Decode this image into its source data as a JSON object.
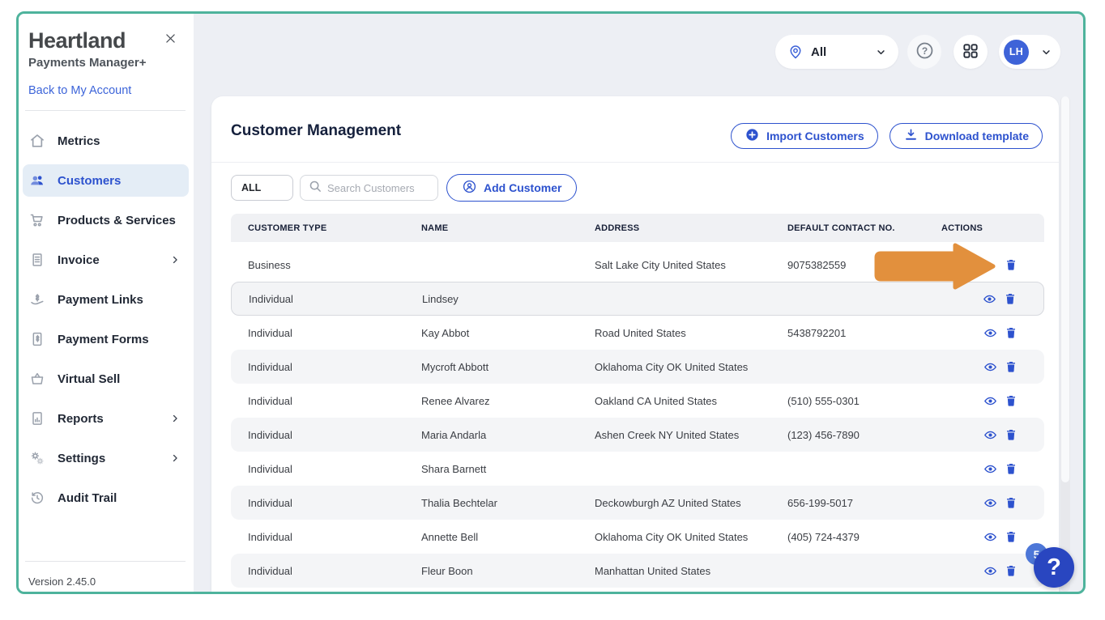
{
  "app": {
    "brand": "Heartland",
    "product": "Payments Manager+",
    "back_link": "Back to My Account",
    "version": "Version 2.45.0",
    "close_icon": "close-icon"
  },
  "topbar": {
    "location_filter": {
      "label": "All",
      "icon": "location-pin-icon",
      "chevron_icon": "chevron-down-icon"
    },
    "help_icon": "help-circle-icon",
    "apps_icon": "grid-apps-icon",
    "user": {
      "initials": "LH",
      "chevron_icon": "chevron-down-icon"
    }
  },
  "sidebar": {
    "items": [
      {
        "label": "Metrics",
        "icon": "home-icon",
        "selected": false,
        "expandable": false
      },
      {
        "label": "Customers",
        "icon": "customers-icon",
        "selected": true,
        "expandable": false
      },
      {
        "label": "Products & Services",
        "icon": "products-icon",
        "selected": false,
        "expandable": false
      },
      {
        "label": "Invoice",
        "icon": "invoice-icon",
        "selected": false,
        "expandable": true
      },
      {
        "label": "Payment Links",
        "icon": "payment-links-icon",
        "selected": false,
        "expandable": false
      },
      {
        "label": "Payment Forms",
        "icon": "payment-forms-icon",
        "selected": false,
        "expandable": false
      },
      {
        "label": "Virtual Sell",
        "icon": "virtual-sell-icon",
        "selected": false,
        "expandable": false
      },
      {
        "label": "Reports",
        "icon": "reports-icon",
        "selected": false,
        "expandable": true
      },
      {
        "label": "Settings",
        "icon": "settings-icon",
        "selected": false,
        "expandable": true
      },
      {
        "label": "Audit Trail",
        "icon": "audit-trail-icon",
        "selected": false,
        "expandable": false
      }
    ]
  },
  "main": {
    "title": "Customer Management",
    "header_buttons": {
      "import": {
        "label": "Import Customers",
        "icon": "plus-circle-icon"
      },
      "download": {
        "label": "Download template",
        "icon": "download-icon"
      }
    },
    "filters": {
      "type_filter": "ALL",
      "search_placeholder": "Search Customers",
      "search_icon": "search-icon",
      "add_customer": {
        "label": "Add Customer",
        "icon": "person-circle-icon"
      }
    },
    "table": {
      "columns": [
        "CUSTOMER TYPE",
        "NAME",
        "ADDRESS",
        "DEFAULT CONTACT NO.",
        "ACTIONS"
      ],
      "action_icons": {
        "view": "eye-icon",
        "delete": "trash-icon"
      },
      "rows": [
        {
          "type": "Business",
          "name": "",
          "address": "Salt Lake City United States",
          "contact": "9075382559",
          "actions": [
            "delete"
          ],
          "arrow_annotation": true,
          "highlighted": false
        },
        {
          "type": "Individual",
          "name": "Lindsey",
          "address": "",
          "contact": "",
          "actions": [
            "view",
            "delete"
          ],
          "arrow_annotation": false,
          "highlighted": true
        },
        {
          "type": "Individual",
          "name": "Kay Abbot",
          "address": "Road United States",
          "contact": "5438792201",
          "actions": [
            "view",
            "delete"
          ],
          "arrow_annotation": false,
          "highlighted": false
        },
        {
          "type": "Individual",
          "name": "Mycroft Abbott",
          "address": "Oklahoma City OK United States",
          "contact": "",
          "actions": [
            "view",
            "delete"
          ],
          "arrow_annotation": false,
          "highlighted": false
        },
        {
          "type": "Individual",
          "name": "Renee Alvarez",
          "address": "Oakland CA United States",
          "contact": "(510) 555-0301",
          "actions": [
            "view",
            "delete"
          ],
          "arrow_annotation": false,
          "highlighted": false
        },
        {
          "type": "Individual",
          "name": "Maria Andarla",
          "address": "Ashen Creek NY United States",
          "contact": "(123) 456-7890",
          "actions": [
            "view",
            "delete"
          ],
          "arrow_annotation": false,
          "highlighted": false
        },
        {
          "type": "Individual",
          "name": "Shara Barnett",
          "address": "",
          "contact": "",
          "actions": [
            "view",
            "delete"
          ],
          "arrow_annotation": false,
          "highlighted": false
        },
        {
          "type": "Individual",
          "name": "Thalia Bechtelar",
          "address": "Deckowburgh AZ United States",
          "contact": "656-199-5017",
          "actions": [
            "view",
            "delete"
          ],
          "arrow_annotation": false,
          "highlighted": false
        },
        {
          "type": "Individual",
          "name": "Annette Bell",
          "address": "Oklahoma City OK United States",
          "contact": "(405) 724-4379",
          "actions": [
            "view",
            "delete"
          ],
          "arrow_annotation": false,
          "highlighted": false
        },
        {
          "type": "Individual",
          "name": "Fleur Boon",
          "address": "Manhattan United States",
          "contact": "",
          "actions": [
            "view",
            "delete"
          ],
          "arrow_annotation": false,
          "highlighted": false
        }
      ]
    }
  },
  "help_widget": {
    "badge_count": "5",
    "icon_label": "?"
  },
  "colors": {
    "teal_border": "#4eb39c",
    "accent_blue": "#2d52ce",
    "avatar_blue": "#3e63d8",
    "help_blue": "#2946c0",
    "badge_blue": "#4d77d8",
    "arrow_orange": "#e2903d"
  }
}
